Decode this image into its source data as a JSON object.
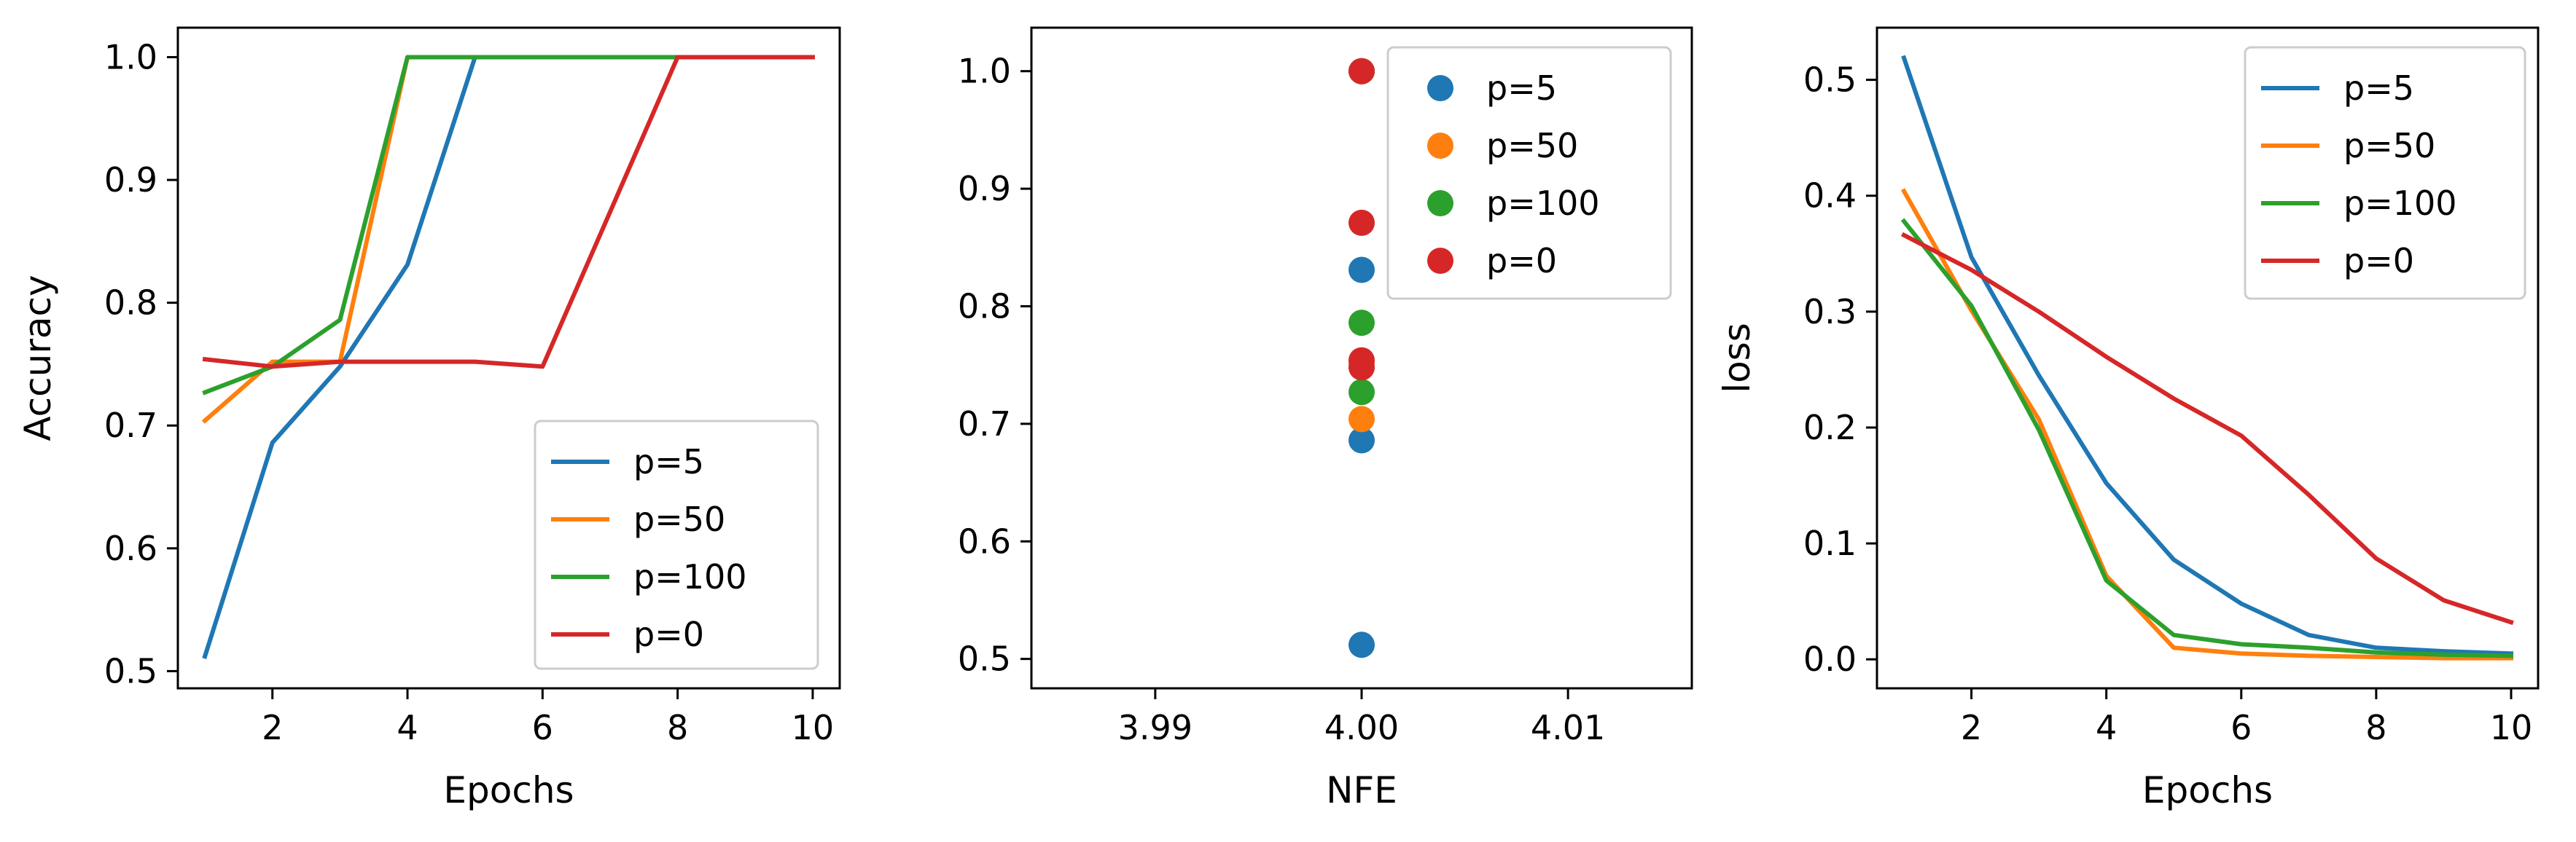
{
  "chart_data": [
    {
      "type": "line",
      "xlabel": "Epochs",
      "ylabel": "Accuracy",
      "xlim": [
        0.6,
        10.4
      ],
      "ylim": [
        0.486,
        1.024
      ],
      "xticks": [
        2,
        4,
        6,
        8,
        10
      ],
      "yticks": [
        0.5,
        0.6,
        0.7,
        0.8,
        0.9,
        1.0
      ],
      "xtick_labels": [
        "2",
        "4",
        "6",
        "8",
        "10"
      ],
      "ytick_labels": [
        "0.5",
        "0.6",
        "0.7",
        "0.8",
        "0.9",
        "1.0"
      ],
      "legend": "lower-right",
      "grid": false,
      "x": [
        1,
        2,
        3,
        4,
        5,
        6,
        7,
        8,
        9,
        10
      ],
      "series": [
        {
          "name": "p=5",
          "color": "#1f77b4",
          "values": [
            0.512,
            0.686,
            0.748,
            0.831,
            1.0,
            1.0,
            1.0,
            1.0,
            1.0,
            1.0
          ]
        },
        {
          "name": "p=50",
          "color": "#ff7f0e",
          "values": [
            0.704,
            0.752,
            0.752,
            1.0,
            1.0,
            1.0,
            1.0,
            1.0,
            1.0,
            1.0
          ]
        },
        {
          "name": "p=100",
          "color": "#2ca02c",
          "values": [
            0.727,
            0.748,
            0.786,
            1.0,
            1.0,
            1.0,
            1.0,
            1.0,
            1.0,
            1.0
          ]
        },
        {
          "name": "p=0",
          "color": "#d62728",
          "values": [
            0.754,
            0.748,
            0.752,
            0.752,
            0.752,
            0.748,
            0.874,
            1.0,
            1.0,
            1.0
          ]
        }
      ]
    },
    {
      "type": "scatter",
      "xlabel": "NFE",
      "ylabel": "",
      "xlim": [
        3.984,
        4.016
      ],
      "ylim": [
        0.475,
        1.037
      ],
      "xticks": [
        3.99,
        4.0,
        4.01
      ],
      "yticks": [
        0.5,
        0.6,
        0.7,
        0.8,
        0.9,
        1.0
      ],
      "xtick_labels": [
        "3.99",
        "4.00",
        "4.01"
      ],
      "ytick_labels": [
        "0.5",
        "0.6",
        "0.7",
        "0.8",
        "0.9",
        "1.0"
      ],
      "legend": "upper-right",
      "grid": false,
      "series": [
        {
          "name": "p=5",
          "color": "#1f77b4",
          "points": [
            [
              4.0,
              0.512
            ],
            [
              4.0,
              0.686
            ],
            [
              4.0,
              0.831
            ],
            [
              4.0,
              1.0
            ]
          ]
        },
        {
          "name": "p=50",
          "color": "#ff7f0e",
          "points": [
            [
              4.0,
              0.704
            ],
            [
              4.0,
              0.752
            ],
            [
              4.0,
              1.0
            ]
          ]
        },
        {
          "name": "p=100",
          "color": "#2ca02c",
          "points": [
            [
              4.0,
              0.727
            ],
            [
              4.0,
              0.786
            ],
            [
              4.0,
              1.0
            ]
          ]
        },
        {
          "name": "p=0",
          "color": "#d62728",
          "points": [
            [
              4.0,
              0.748
            ],
            [
              4.0,
              0.754
            ],
            [
              4.0,
              0.871
            ],
            [
              4.0,
              1.0
            ]
          ]
        }
      ]
    },
    {
      "type": "line",
      "xlabel": "Epochs",
      "ylabel": "loss",
      "xlim": [
        0.6,
        10.4
      ],
      "ylim": [
        -0.025,
        0.545
      ],
      "xticks": [
        2,
        4,
        6,
        8,
        10
      ],
      "yticks": [
        0.0,
        0.1,
        0.2,
        0.3,
        0.4,
        0.5
      ],
      "xtick_labels": [
        "2",
        "4",
        "6",
        "8",
        "10"
      ],
      "ytick_labels": [
        "0.0",
        "0.1",
        "0.2",
        "0.3",
        "0.4",
        "0.5"
      ],
      "legend": "upper-right",
      "grid": false,
      "x": [
        1,
        2,
        3,
        4,
        5,
        6,
        7,
        8,
        9,
        10
      ],
      "series": [
        {
          "name": "p=5",
          "color": "#1f77b4",
          "values": [
            0.519,
            0.347,
            0.245,
            0.152,
            0.086,
            0.048,
            0.021,
            0.01,
            0.007,
            0.005
          ]
        },
        {
          "name": "p=50",
          "color": "#ff7f0e",
          "values": [
            0.404,
            0.301,
            0.207,
            0.072,
            0.01,
            0.005,
            0.003,
            0.002,
            0.001,
            0.001
          ]
        },
        {
          "name": "p=100",
          "color": "#2ca02c",
          "values": [
            0.378,
            0.305,
            0.198,
            0.068,
            0.021,
            0.013,
            0.01,
            0.006,
            0.004,
            0.003
          ]
        },
        {
          "name": "p=0",
          "color": "#d62728",
          "values": [
            0.366,
            0.336,
            0.3,
            0.261,
            0.225,
            0.193,
            0.142,
            0.087,
            0.051,
            0.032
          ]
        }
      ]
    }
  ]
}
